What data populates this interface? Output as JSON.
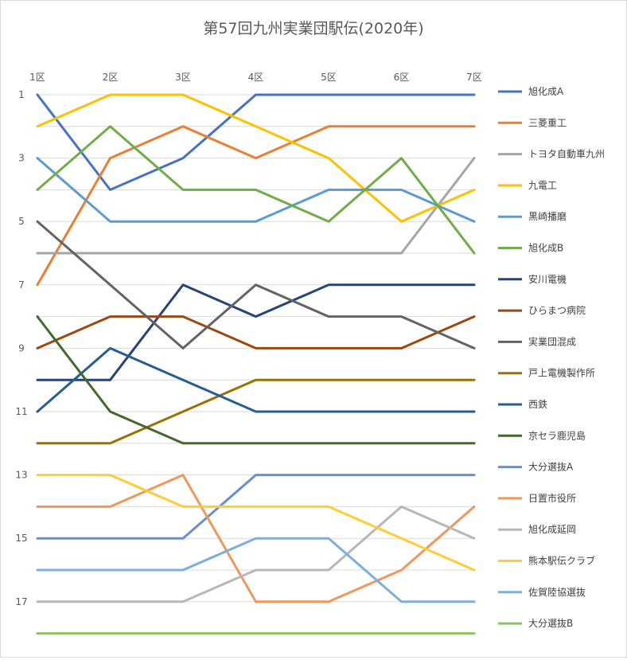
{
  "chart_data": {
    "type": "line",
    "title": "第57回九州実業団駅伝(2020年)",
    "xlabel": "",
    "ylabel": "",
    "categories": [
      "1区",
      "2区",
      "3区",
      "4区",
      "5区",
      "6区",
      "7区"
    ],
    "y_ticks": [
      "1",
      "3",
      "5",
      "7",
      "9",
      "11",
      "13",
      "15",
      "17"
    ],
    "ylim": [
      1,
      18
    ],
    "y_reversed": true,
    "grid": true,
    "legend_position": "right",
    "series": [
      {
        "name": "旭化成A",
        "color": "#4472C4",
        "values": [
          1,
          4,
          3,
          1,
          1,
          1,
          1
        ]
      },
      {
        "name": "三菱重工",
        "color": "#ED7D31",
        "values": [
          7,
          3,
          2,
          3,
          2,
          2,
          2
        ]
      },
      {
        "name": "トヨタ自動車九州",
        "color": "#A5A5A5",
        "values": [
          6,
          6,
          6,
          6,
          6,
          6,
          3
        ]
      },
      {
        "name": "九電工",
        "color": "#FFC000",
        "values": [
          2,
          1,
          1,
          2,
          3,
          5,
          4
        ]
      },
      {
        "name": "黒崎播磨",
        "color": "#5B9BD5",
        "values": [
          3,
          5,
          5,
          5,
          4,
          4,
          5
        ]
      },
      {
        "name": "旭化成B",
        "color": "#70AD47",
        "values": [
          4,
          2,
          4,
          4,
          5,
          3,
          6
        ]
      },
      {
        "name": "安川電機",
        "color": "#264478",
        "values": [
          10,
          10,
          7,
          8,
          7,
          7,
          7
        ]
      },
      {
        "name": "ひらまつ病院",
        "color": "#9E480E",
        "values": [
          9,
          8,
          8,
          9,
          9,
          9,
          8
        ]
      },
      {
        "name": "実業団混成",
        "color": "#636363",
        "values": [
          5,
          7,
          9,
          7,
          8,
          8,
          9
        ]
      },
      {
        "name": "戸上電機製作所",
        "color": "#997300",
        "values": [
          12,
          12,
          11,
          10,
          10,
          10,
          10
        ]
      },
      {
        "name": "西鉄",
        "color": "#255E91",
        "values": [
          11,
          9,
          10,
          11,
          11,
          11,
          11
        ]
      },
      {
        "name": "京セラ鹿児島",
        "color": "#43682B",
        "values": [
          8,
          11,
          12,
          12,
          12,
          12,
          12
        ]
      },
      {
        "name": "大分選抜A",
        "color": "#698ED0",
        "values": [
          15,
          15,
          15,
          13,
          13,
          13,
          13
        ]
      },
      {
        "name": "日置市役所",
        "color": "#F1975A",
        "values": [
          14,
          14,
          13,
          17,
          17,
          16,
          14
        ]
      },
      {
        "name": "旭化成延岡",
        "color": "#B7B7B7",
        "values": [
          17,
          17,
          17,
          16,
          16,
          14,
          15
        ]
      },
      {
        "name": "熊本駅伝クラブ",
        "color": "#FFCD33",
        "values": [
          13,
          13,
          14,
          14,
          14,
          15,
          16
        ]
      },
      {
        "name": "佐賀陸協選抜",
        "color": "#7CAFDD",
        "values": [
          16,
          16,
          16,
          15,
          15,
          17,
          17
        ]
      },
      {
        "name": "大分選抜B",
        "color": "#8CC168",
        "values": [
          18,
          18,
          18,
          18,
          18,
          18,
          18
        ]
      }
    ]
  }
}
